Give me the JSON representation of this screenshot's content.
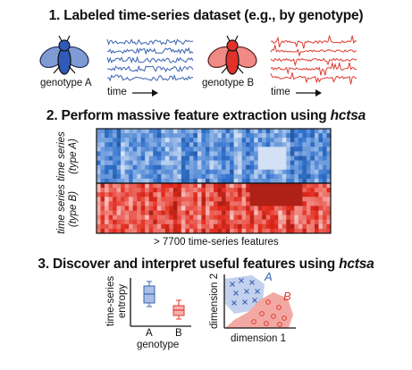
{
  "step1": {
    "title": "1. Labeled time-series dataset (e.g., by genotype)",
    "genotype_a_label": "genotype A",
    "genotype_b_label": "genotype B",
    "time_label": "time",
    "color_a": "#3a63b0",
    "color_b": "#e03a2f"
  },
  "step2": {
    "title_prefix": "2. Perform massive feature extraction using ",
    "title_tool": "hctsa",
    "row_label_a_line1": "time series",
    "row_label_a_line2": "(type A)",
    "row_label_b_line1": "time series",
    "row_label_b_line2": "(type B)",
    "features_caption": "> 7700 time-series features"
  },
  "step3": {
    "title_prefix": "3. Discover and interpret useful features using ",
    "title_tool": "hctsa",
    "boxplot": {
      "ylabel_line1": "time-series",
      "ylabel_line2": "entropy",
      "xlabel": "genotype",
      "cat_a": "A",
      "cat_b": "B"
    },
    "scatter": {
      "xlabel": "dimension 1",
      "ylabel": "dimension 2",
      "class_a": "A",
      "class_b": "B"
    }
  }
}
